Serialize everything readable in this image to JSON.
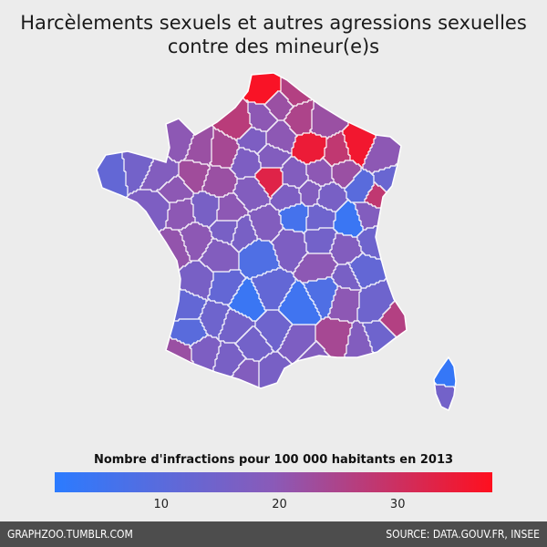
{
  "title": {
    "line1": "Harcèlements sexuels et autres agressions sexuelles",
    "line2": "contre des mineur(e)s"
  },
  "legend": {
    "title": "Nombre d'infractions pour 100 000 habitants en 2013",
    "min": 1,
    "max": 38,
    "ticks": [
      {
        "value": 10,
        "label": "10"
      },
      {
        "value": 20,
        "label": "20"
      },
      {
        "value": 30,
        "label": "30"
      }
    ],
    "color_low": "#2b7bff",
    "color_mid": "#8a5ab8",
    "color_high": "#ff0f1e"
  },
  "footer": {
    "left": "GRAPHZOO.TUMBLR.COM",
    "right": "SOURCE: DATA.GOUV.FR, INSEE"
  }
}
